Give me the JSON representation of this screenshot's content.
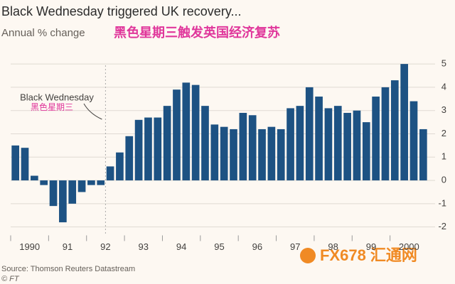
{
  "chart_data": {
    "type": "bar",
    "title": "Black Wednesday triggered UK recovery...",
    "subtitle": "Annual % change",
    "overlay_title": "黑色星期三触发英国经济复苏",
    "annotation": "Black Wednesday",
    "annotation_cn": "黑色星期三",
    "source": "Source: Thomson Reuters Datastream",
    "credit": "© FT",
    "watermark": "FX678 汇通网",
    "categories": [
      "1990",
      null,
      null,
      null,
      "91",
      null,
      null,
      null,
      "92",
      null,
      null,
      null,
      "93",
      null,
      null,
      null,
      "94",
      null,
      null,
      null,
      "95",
      null,
      null,
      null,
      "96",
      null,
      null,
      null,
      "97",
      null,
      null,
      null,
      "98",
      null,
      null,
      null,
      "99",
      null,
      null,
      null,
      "2000",
      null,
      null,
      null
    ],
    "values": [
      1.5,
      1.4,
      0.2,
      -0.2,
      -1.1,
      -1.8,
      -1.0,
      -0.5,
      -0.2,
      -0.2,
      0.6,
      1.2,
      1.9,
      2.6,
      2.7,
      2.7,
      3.2,
      3.9,
      4.2,
      4.1,
      3.2,
      2.4,
      2.3,
      2.2,
      2.9,
      2.8,
      2.2,
      2.3,
      2.2,
      3.1,
      3.2,
      4.0,
      3.6,
      3.1,
      3.2,
      2.9,
      3.0,
      2.5,
      3.6,
      4.0,
      4.3,
      5.0,
      3.4,
      2.2
    ],
    "color": "#1d5283",
    "ylim": [
      -2.3,
      5.4
    ],
    "yticks": [
      -2,
      -1,
      0,
      1,
      2,
      3,
      4,
      5
    ],
    "grid": true
  }
}
